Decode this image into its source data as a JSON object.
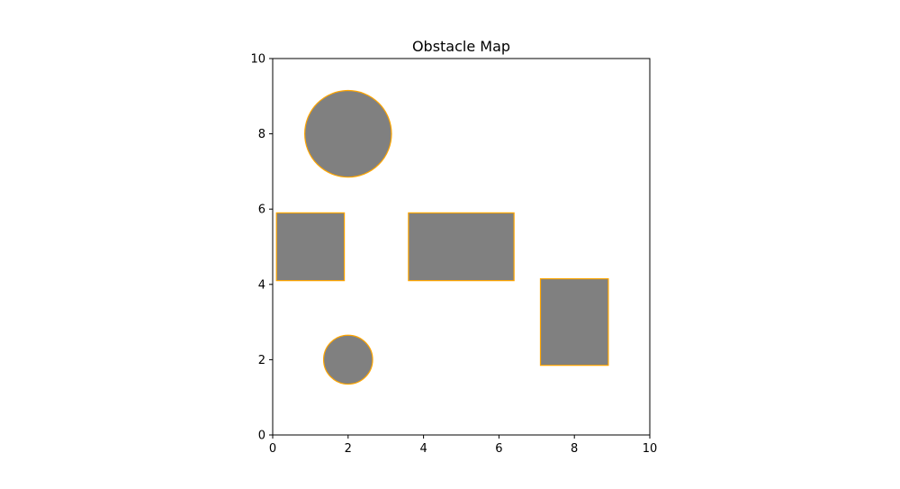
{
  "chart_data": {
    "type": "scatter",
    "title": "Obstacle Map",
    "xlabel": "",
    "ylabel": "",
    "xlim": [
      0,
      10
    ],
    "ylim": [
      0,
      10
    ],
    "xticks": [
      "0",
      "2",
      "4",
      "6",
      "8",
      "10"
    ],
    "yticks": [
      "0",
      "2",
      "4",
      "6",
      "8",
      "10"
    ],
    "grid": false,
    "obstacles": [
      {
        "shape": "circle",
        "cx": 2,
        "cy": 8,
        "r": 1.15
      },
      {
        "shape": "circle",
        "cx": 2,
        "cy": 2,
        "r": 0.65
      },
      {
        "shape": "rect",
        "x0": 0.1,
        "y0": 4.1,
        "x1": 1.9,
        "y1": 5.9
      },
      {
        "shape": "rect",
        "x0": 3.6,
        "y0": 4.1,
        "x1": 6.4,
        "y1": 5.9
      },
      {
        "shape": "rect",
        "x0": 7.1,
        "y0": 1.85,
        "x1": 8.9,
        "y1": 4.15
      }
    ],
    "fill_color": "#808080",
    "edge_color": "#ffa500"
  }
}
